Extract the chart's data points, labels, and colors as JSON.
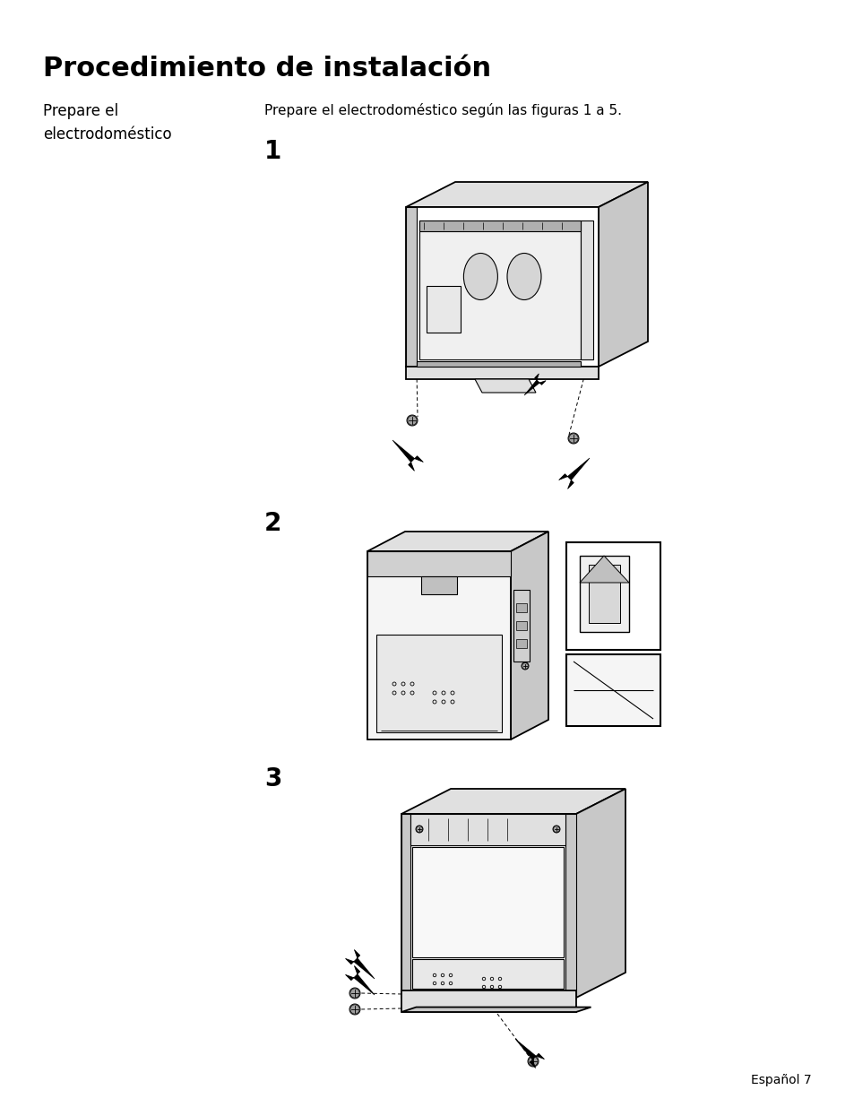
{
  "title": "Procedimiento de instalación",
  "subtitle_left": "Prepare el\nelectrodoméstico",
  "subtitle_right": "Prepare el electrodoméstico según las figuras 1 a 5.",
  "footer": "Español 7",
  "background_color": "#ffffff",
  "text_color": "#000000",
  "title_fontsize": 22,
  "subtitle_fontsize": 12,
  "body_fontsize": 11,
  "footer_fontsize": 10,
  "fig1_label": "1",
  "fig2_label": "2",
  "fig3_label": "3",
  "line_color": "#000000",
  "face_light": "#f5f5f5",
  "face_mid": "#e0e0e0",
  "face_dark": "#c8c8c8",
  "face_white": "#ffffff"
}
